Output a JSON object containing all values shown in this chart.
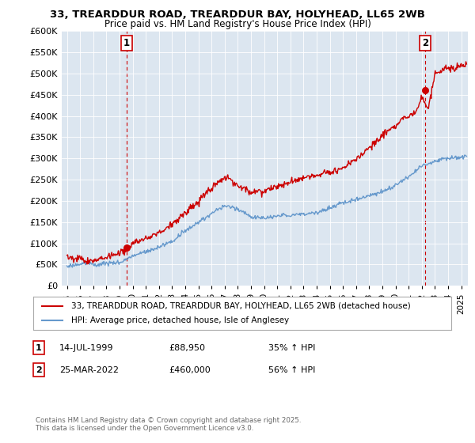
{
  "title": "33, TREARDDUR ROAD, TREARDDUR BAY, HOLYHEAD, LL65 2WB",
  "subtitle": "Price paid vs. HM Land Registry's House Price Index (HPI)",
  "legend_line1": "33, TREARDDUR ROAD, TREARDDUR BAY, HOLYHEAD, LL65 2WB (detached house)",
  "legend_line2": "HPI: Average price, detached house, Isle of Anglesey",
  "marker1_label": "1",
  "marker1_date": "14-JUL-1999",
  "marker1_price": "£88,950",
  "marker1_hpi": "35% ↑ HPI",
  "marker2_label": "2",
  "marker2_date": "25-MAR-2022",
  "marker2_price": "£460,000",
  "marker2_hpi": "56% ↑ HPI",
  "footnote": "Contains HM Land Registry data © Crown copyright and database right 2025.\nThis data is licensed under the Open Government Licence v3.0.",
  "ylim": [
    0,
    600000
  ],
  "yticks": [
    0,
    50000,
    100000,
    150000,
    200000,
    250000,
    300000,
    350000,
    400000,
    450000,
    500000,
    550000,
    600000
  ],
  "ytick_labels": [
    "£0",
    "£50K",
    "£100K",
    "£150K",
    "£200K",
    "£250K",
    "£300K",
    "£350K",
    "£400K",
    "£450K",
    "£500K",
    "£550K",
    "£600K"
  ],
  "red_color": "#cc0000",
  "blue_color": "#6699cc",
  "dashed_color": "#cc0000",
  "background_color": "#ffffff",
  "plot_bg_color": "#dce6f0",
  "grid_color": "#ffffff",
  "marker1_x": 1999.54,
  "marker1_y": 88950,
  "marker2_x": 2022.23,
  "marker2_y": 460000,
  "xmin": 1994.6,
  "xmax": 2025.5
}
